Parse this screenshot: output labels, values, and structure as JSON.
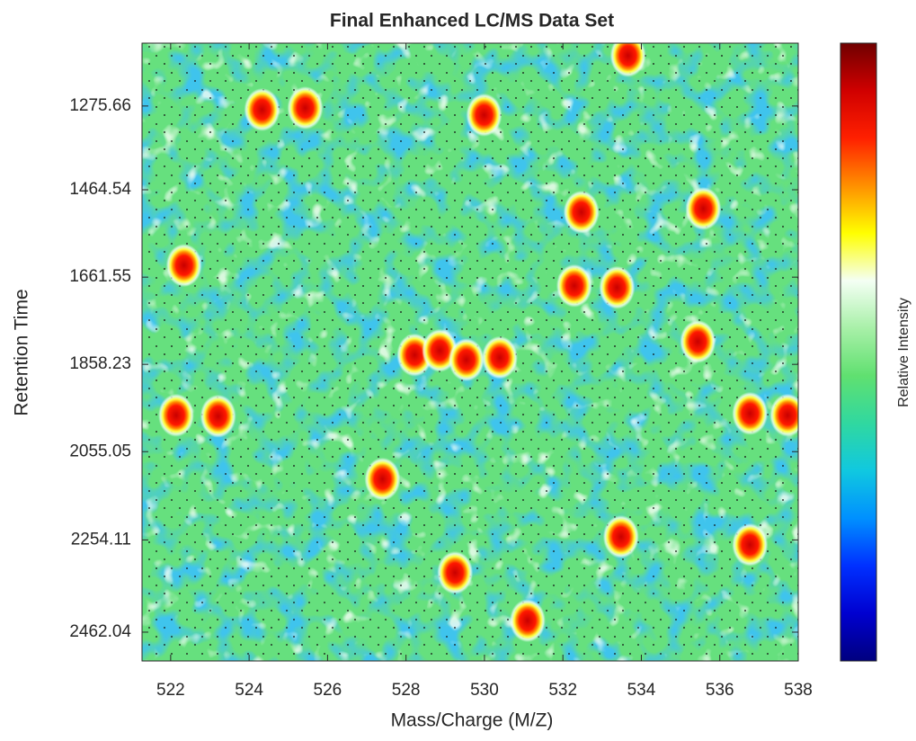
{
  "chart_data": {
    "type": "heatmap",
    "title": "Final Enhanced LC/MS Data Set",
    "xlabel": "Mass/Charge (M/Z)",
    "ylabel": "Retention Time",
    "colorbar_label": "Relative Intensity",
    "x": [
      533.66,
      524.33,
      525.43,
      529.99,
      535.58,
      532.47,
      522.34,
      532.29,
      533.38,
      535.44,
      528.22,
      528.86,
      529.54,
      530.39,
      522.14,
      523.21,
      536.77,
      537.73,
      527.4,
      533.48,
      536.77,
      529.25,
      531.1
    ],
    "y": [
      1162,
      1284,
      1280,
      1296,
      1507,
      1515,
      1635,
      1681,
      1685,
      1807,
      1837,
      1827,
      1848,
      1843,
      1973,
      1975,
      1969,
      1973,
      2117,
      2247,
      2265,
      2328,
      2436
    ],
    "xlim": [
      521.27,
      538
    ],
    "ylim": [
      2527,
      1134
    ],
    "xticks": [
      522,
      524,
      526,
      528,
      530,
      532,
      534,
      536,
      538
    ],
    "yticks": [
      1275.66,
      1464.54,
      1661.55,
      1858.23,
      2055.05,
      2254.11,
      2462.04
    ],
    "colormap": [
      "#00007f",
      "#0000d0",
      "#0030ff",
      "#0090ff",
      "#10c8e0",
      "#30d8a0",
      "#60e070",
      "#a8f0a8",
      "#f4fff4",
      "#ffff00",
      "#ff9000",
      "#ff2000",
      "#d00000",
      "#700000"
    ]
  }
}
